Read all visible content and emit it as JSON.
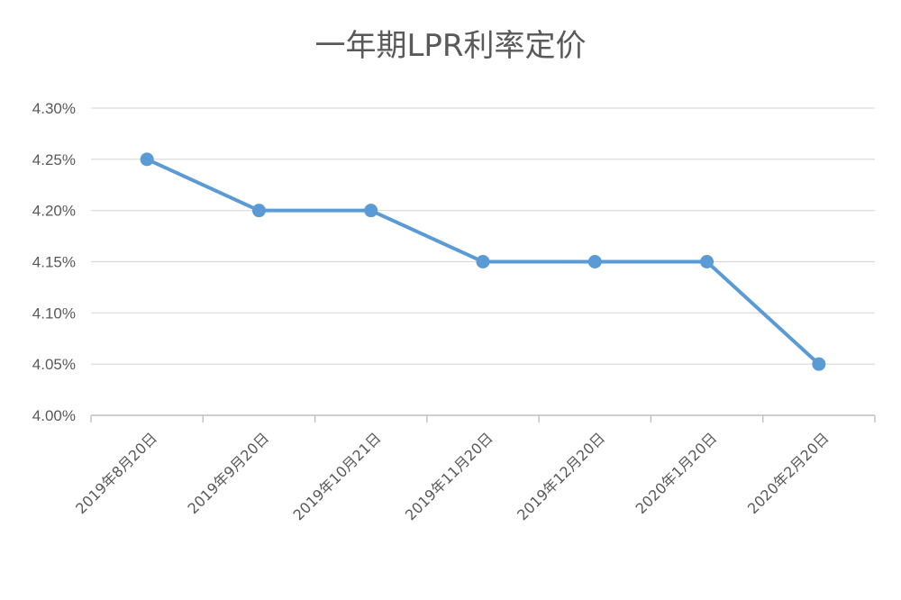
{
  "chart_data": {
    "type": "line",
    "title": "一年期LPR利率定价",
    "categories": [
      "2019年8月20日",
      "2019年9月20日",
      "2019年10月21日",
      "2019年11月20日",
      "2019年12月20日",
      "2020年1月20日",
      "2020年2月20日"
    ],
    "series": [
      {
        "values": [
          4.25,
          4.2,
          4.2,
          4.15,
          4.15,
          4.15,
          4.05
        ]
      }
    ],
    "y_ticks": [
      "4.00%",
      "4.05%",
      "4.10%",
      "4.15%",
      "4.20%",
      "4.25%",
      "4.30%"
    ],
    "ylim": [
      4.0,
      4.3
    ],
    "y_unit": "%",
    "grid": true,
    "legend": "none",
    "colors": {
      "series": "#5b9bd5",
      "grid": "#d9d9d9",
      "text": "#595959"
    }
  }
}
